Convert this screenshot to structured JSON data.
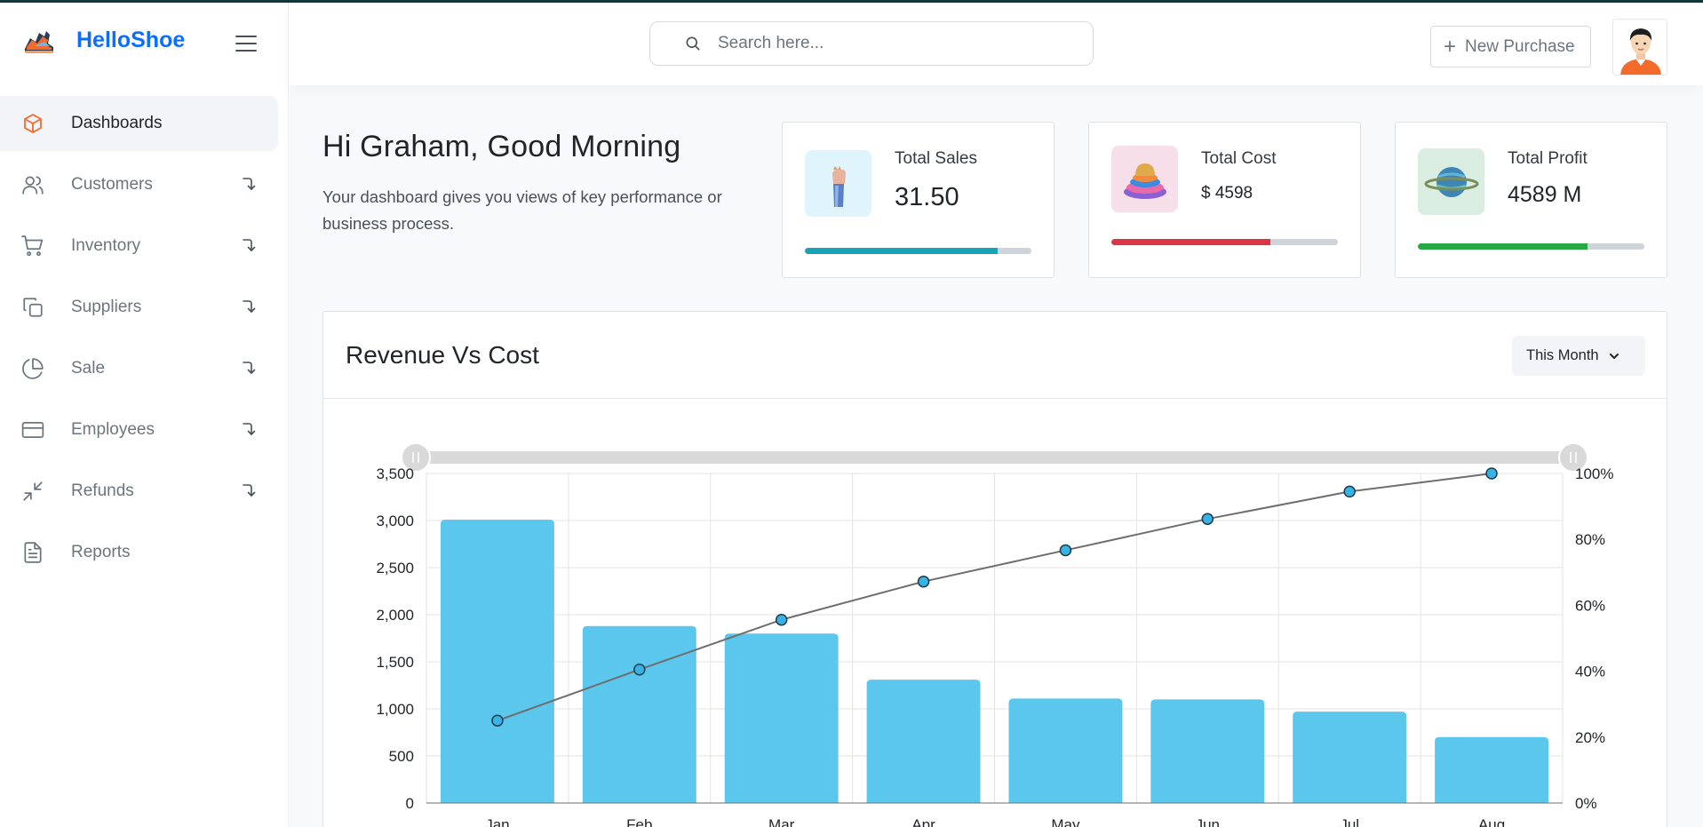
{
  "brand": {
    "name": "HelloShoe"
  },
  "sidebar": {
    "items": [
      {
        "label": "Dashboards",
        "icon": "cube-icon",
        "active": true,
        "expandable": false
      },
      {
        "label": "Customers",
        "icon": "users-icon",
        "active": false,
        "expandable": true
      },
      {
        "label": "Inventory",
        "icon": "cart-icon",
        "active": false,
        "expandable": true
      },
      {
        "label": "Suppliers",
        "icon": "copy-icon",
        "active": false,
        "expandable": true
      },
      {
        "label": "Sale",
        "icon": "pie-chart-icon",
        "active": false,
        "expandable": true
      },
      {
        "label": "Employees",
        "icon": "credit-card-icon",
        "active": false,
        "expandable": true
      },
      {
        "label": "Refunds",
        "icon": "minimize-icon",
        "active": false,
        "expandable": true
      },
      {
        "label": "Reports",
        "icon": "file-text-icon",
        "active": false,
        "expandable": false
      }
    ]
  },
  "header": {
    "search_placeholder": "Search here...",
    "new_purchase_label": "New Purchase"
  },
  "greeting": {
    "title": "Hi Graham, Good Morning",
    "subtitle": "Your dashboard gives you views of key performance or business process."
  },
  "cards": [
    {
      "title": "Total Sales",
      "value": "31.50",
      "progress": 0.85,
      "color": "#17a2b8",
      "thumb_bg": "#dff4fb"
    },
    {
      "title": "Total Cost",
      "value": "$ 4598",
      "progress": 0.7,
      "color": "#dc3545",
      "thumb_bg": "#f7dfe9"
    },
    {
      "title": "Total Profit",
      "value": "4589 M",
      "progress": 0.75,
      "color": "#28a745",
      "thumb_bg": "#d9ede1"
    }
  ],
  "panel": {
    "title": "Revenue Vs Cost",
    "period_label": "This Month"
  },
  "chart_data": {
    "type": "bar",
    "categories": [
      "Jan",
      "Feb",
      "Mar",
      "Apr",
      "May",
      "Jun",
      "Jul",
      "Aug"
    ],
    "series": [
      {
        "type": "bar",
        "values": [
          3010,
          1880,
          1800,
          1310,
          1110,
          1100,
          970,
          700
        ],
        "color": "#5bc7ec",
        "axis": "left"
      },
      {
        "type": "line",
        "values": [
          25,
          40.5,
          55.6,
          67.2,
          76.7,
          86.2,
          94.5,
          100
        ],
        "color": "#6e6e6e",
        "marker_color": "#37b3e6",
        "axis": "right"
      }
    ],
    "yticks_left": [
      "0",
      "500",
      "1,000",
      "1,500",
      "2,000",
      "2,500",
      "3,000",
      "3,500"
    ],
    "yticks_right": [
      "0%",
      "20%",
      "40%",
      "60%",
      "80%",
      "100%"
    ],
    "ylim_left": [
      0,
      3500
    ],
    "ylim_right": [
      0,
      100
    ],
    "grid": true
  }
}
